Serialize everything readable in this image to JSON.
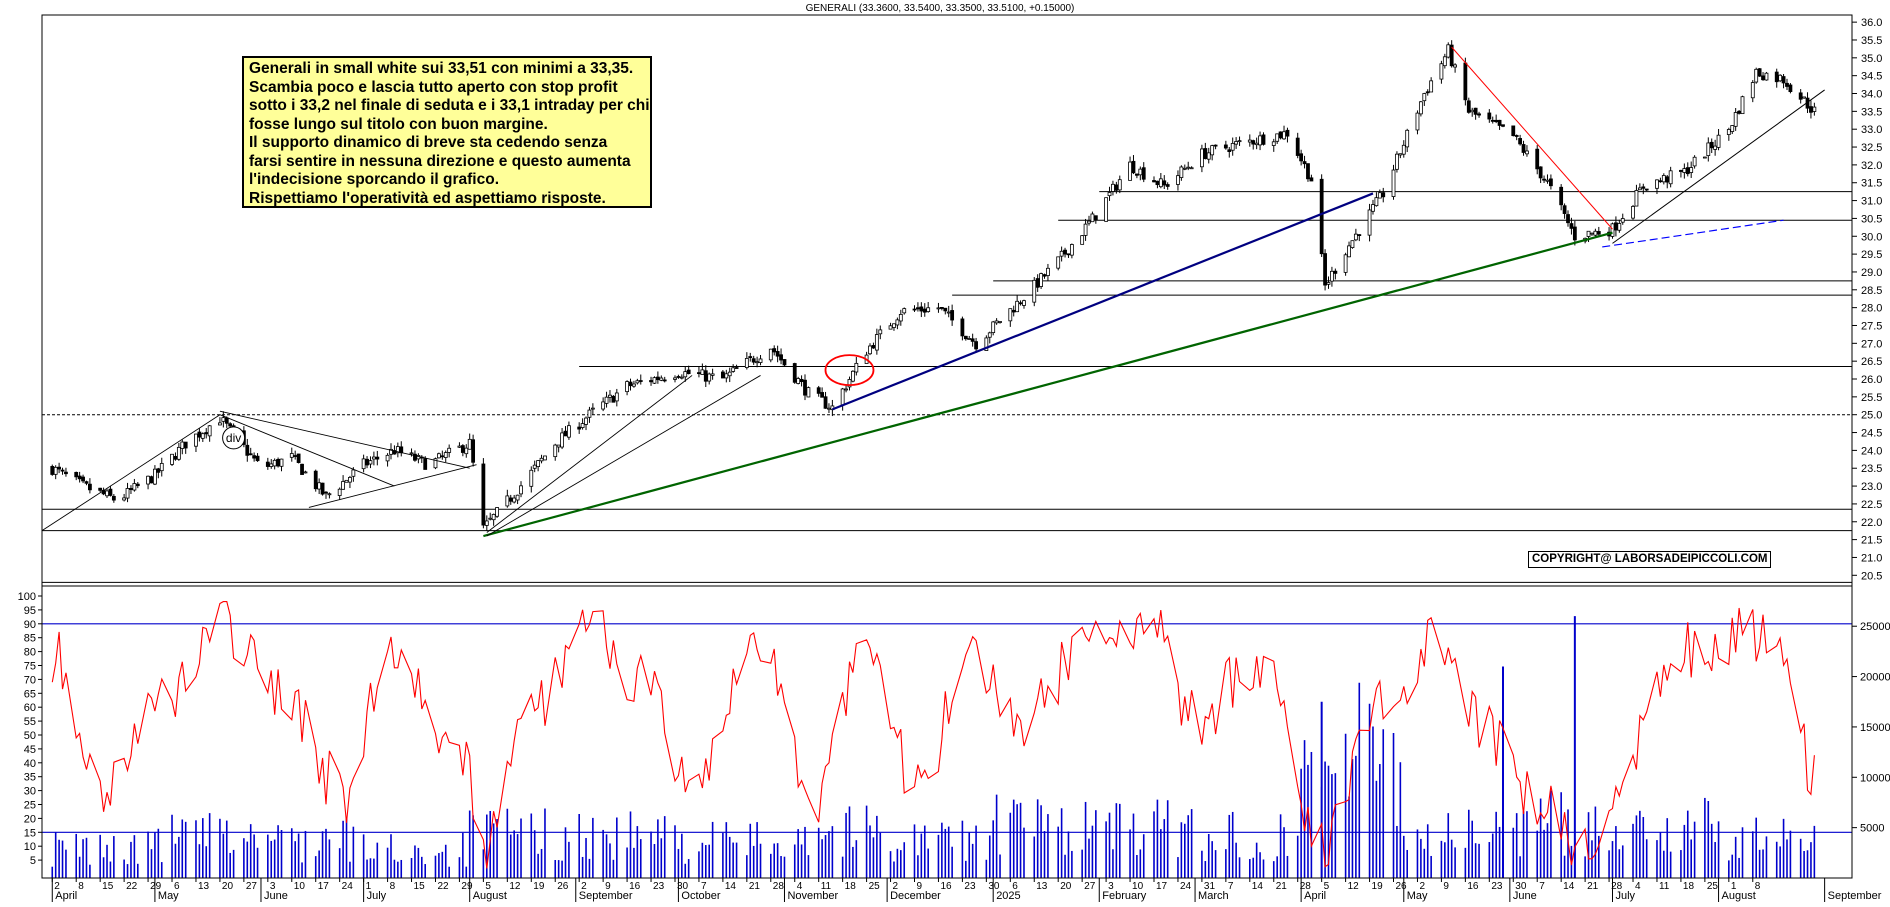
{
  "title": "GENERALI (33.3600, 33.5400, 33.3500, 33.5100, +0.15000)",
  "annotation": {
    "lines": [
      "Generali in small white sui 33,51 con minimi a 33,35.",
      "Scambia poco e lascia tutto aperto con stop profit",
      "sotto i 33,2 nel finale di seduta e i 33,1 intraday per chi",
      "fosse lungo sul titolo con buon margine.",
      "Il supporto dinamico  di breve sta cedendo senza",
      "farsi sentire in nessuna direzione e questo aumenta",
      "l'indecisione sporcando il grafico.",
      "Rispettiamo l'operatività ed aspettiamo risposte."
    ]
  },
  "copyright": "COPYRIGHT@ LABORSADEIPICCOLI.COM",
  "div_marker": "div",
  "colors": {
    "candle": "#000000",
    "rsi": "#ff0000",
    "volume": "#0000cc",
    "support": "#006400",
    "trend": "#000080",
    "resistance": "#ff0000",
    "ellipse": "#ff0000",
    "hline": "#0000cc"
  },
  "chart_data": [
    {
      "type": "candlestick",
      "title": "GENERALI (33.3600, 33.5400, 33.3500, 33.5100, +0.15000)",
      "ylim": [
        20.2,
        36.2
      ],
      "yticks": [
        "36.0",
        "35.5",
        "35.0",
        "34.5",
        "34.0",
        "33.5",
        "33.0",
        "32.5",
        "32.0",
        "31.5",
        "31.0",
        "30.5",
        "30.0",
        "29.5",
        "29.0",
        "28.5",
        "28.0",
        "27.5",
        "27.0",
        "26.5",
        "26.0",
        "25.5",
        "25.0",
        "24.5",
        "24.0",
        "23.5",
        "23.0",
        "22.5",
        "22.0",
        "21.5",
        "21.0",
        "20.5"
      ],
      "horizontal_levels": [
        31.25,
        30.45,
        28.75,
        28.35,
        26.35,
        25.0,
        22.35,
        21.75,
        20.3
      ],
      "trendlines": [
        {
          "name": "long-term support",
          "color": "green",
          "from": [
            "2024-08-05",
            21.6
          ],
          "to": [
            "2025-07-01",
            30.1
          ]
        },
        {
          "name": "medium-term support",
          "color": "navy",
          "from": [
            "2024-11-15",
            25.15
          ],
          "to": [
            "2025-04-22",
            31.2
          ]
        },
        {
          "name": "resistance",
          "color": "red",
          "from": [
            "2025-05-15",
            35.3
          ],
          "to": [
            "2025-07-01",
            30.2
          ]
        },
        {
          "name": "short-term support",
          "color": "black",
          "from": [
            "2025-07-01",
            29.8
          ],
          "to": [
            "2025-09-01",
            34.1
          ]
        }
      ],
      "close_series": {
        "dates": [
          "2024-04-01",
          "2024-04-10",
          "2024-04-20",
          "2024-05-01",
          "2024-05-10",
          "2024-05-20",
          "2024-06-01",
          "2024-06-10",
          "2024-06-20",
          "2024-07-01",
          "2024-07-10",
          "2024-07-20",
          "2024-08-01",
          "2024-08-05",
          "2024-08-15",
          "2024-08-26",
          "2024-09-05",
          "2024-09-16",
          "2024-10-01",
          "2024-10-14",
          "2024-10-28",
          "2024-11-08",
          "2024-11-15",
          "2024-11-25",
          "2024-12-05",
          "2024-12-16",
          "2024-12-27",
          "2025-01-10",
          "2025-01-20",
          "2025-01-31",
          "2025-02-10",
          "2025-02-20",
          "2025-03-03",
          "2025-03-14",
          "2025-03-28",
          "2025-04-04",
          "2025-04-08",
          "2025-04-14",
          "2025-04-25",
          "2025-05-07",
          "2025-05-14",
          "2025-05-20",
          "2025-06-02",
          "2025-06-12",
          "2025-06-20",
          "2025-07-01",
          "2025-07-10",
          "2025-07-22",
          "2025-08-04",
          "2025-08-12",
          "2025-08-20",
          "2025-08-29"
        ],
        "close": [
          23.5,
          23.0,
          22.6,
          23.3,
          24.2,
          24.9,
          23.5,
          23.8,
          22.7,
          23.6,
          24.0,
          23.6,
          24.2,
          21.8,
          22.9,
          24.2,
          25.0,
          25.8,
          26.2,
          26.0,
          26.9,
          25.6,
          25.2,
          26.8,
          27.9,
          28.0,
          27.0,
          28.3,
          29.3,
          30.6,
          32.0,
          31.4,
          32.3,
          32.6,
          32.9,
          31.6,
          28.6,
          29.6,
          31.2,
          34.0,
          35.2,
          33.5,
          32.8,
          31.5,
          30.0,
          30.2,
          31.4,
          31.8,
          33.0,
          34.6,
          34.4,
          33.5
        ]
      },
      "last_bar": {
        "open": 33.36,
        "high": 33.54,
        "low": 33.35,
        "close": 33.51,
        "change": 0.15
      }
    },
    {
      "type": "line",
      "name": "oscillator",
      "ylim": [
        0,
        100
      ],
      "yticks": [
        "100",
        "95",
        "90",
        "85",
        "80",
        "75",
        "70",
        "65",
        "60",
        "55",
        "50",
        "45",
        "40",
        "35",
        "30",
        "25",
        "20",
        "15",
        "10",
        "5"
      ],
      "levels": [
        90,
        15
      ],
      "x": [
        "2024-04-01",
        "2024-04-15",
        "2024-05-01",
        "2024-05-20",
        "2024-06-10",
        "2024-06-25",
        "2024-07-10",
        "2024-07-30",
        "2024-08-05",
        "2024-08-20",
        "2024-09-05",
        "2024-09-20",
        "2024-10-05",
        "2024-10-25",
        "2024-11-10",
        "2024-11-25",
        "2024-12-10",
        "2024-12-25",
        "2025-01-10",
        "2025-01-30",
        "2025-02-15",
        "2025-03-01",
        "2025-03-20",
        "2025-04-07",
        "2025-04-25",
        "2025-05-10",
        "2025-05-25",
        "2025-06-10",
        "2025-06-25",
        "2025-07-05",
        "2025-07-20",
        "2025-08-05",
        "2025-08-20",
        "2025-08-29"
      ],
      "values": [
        80,
        30,
        60,
        90,
        60,
        28,
        82,
        40,
        8,
        60,
        92,
        70,
        28,
        85,
        25,
        88,
        30,
        75,
        55,
        88,
        92,
        55,
        78,
        12,
        60,
        85,
        50,
        25,
        8,
        40,
        80,
        85,
        85,
        35
      ]
    },
    {
      "type": "bar",
      "name": "volume",
      "yticks": [
        "25000",
        "20000",
        "15000",
        "10000",
        "5000"
      ],
      "ylim": [
        0,
        28000
      ],
      "reference_level": 5000,
      "x": [
        "2024-04",
        "2024-05",
        "2024-06",
        "2024-07",
        "2024-08",
        "2024-09",
        "2024-10",
        "2024-11",
        "2024-12",
        "2025-01",
        "2025-02",
        "2025-03",
        "2025-04",
        "2025-05",
        "2025-06",
        "2025-07",
        "2025-08"
      ],
      "values": [
        3200,
        4500,
        4200,
        3100,
        4800,
        4600,
        4000,
        5200,
        4300,
        5800,
        5400,
        4600,
        13500,
        4800,
        6000,
        5600,
        4200
      ],
      "peaks": [
        {
          "x": "2025-04-07",
          "value": 17500
        },
        {
          "x": "2025-06-20",
          "value": 26000
        },
        {
          "x": "2025-05-30",
          "value": 21000
        }
      ]
    }
  ],
  "x_axis": {
    "months": [
      "April",
      "May",
      "June",
      "July",
      "August",
      "September",
      "October",
      "November",
      "December",
      "2025",
      "February",
      "March",
      "April",
      "May",
      "June",
      "July",
      "August",
      "September"
    ],
    "days": [
      "2",
      "8",
      "15",
      "22",
      "29",
      "6",
      "13",
      "20",
      "27",
      "3",
      "10",
      "17",
      "24",
      "1",
      "8",
      "15",
      "22",
      "29",
      "5",
      "12",
      "19",
      "26",
      "2",
      "9",
      "16",
      "23",
      "30",
      "7",
      "14",
      "21",
      "28",
      "4",
      "11",
      "18",
      "25",
      "2",
      "9",
      "16",
      "23",
      "30",
      "6",
      "13",
      "20",
      "27",
      "3",
      "10",
      "17",
      "24",
      "31",
      "7",
      "14",
      "21",
      "28",
      "5",
      "12",
      "19",
      "26",
      "2",
      "9",
      "16",
      "23",
      "30",
      "7",
      "14",
      "21",
      "28",
      "4",
      "11",
      "18",
      "25",
      "1",
      "8"
    ]
  }
}
